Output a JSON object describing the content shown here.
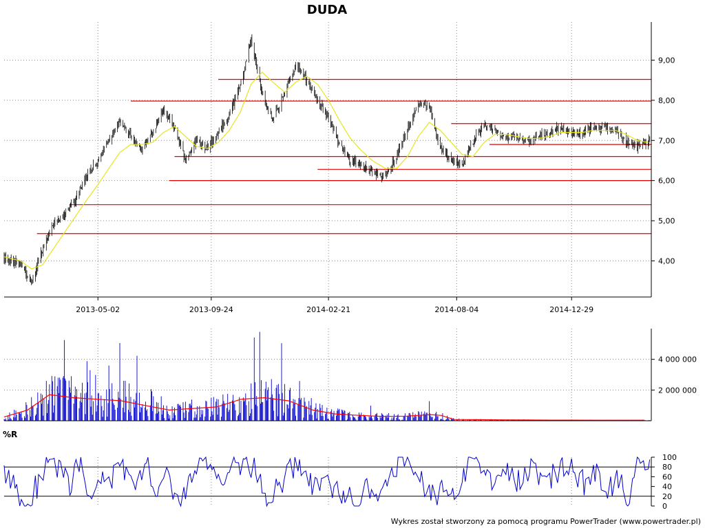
{
  "chart_data": [
    {
      "type": "candlestick",
      "title": "DUDA",
      "x_ticks": [
        "2013-05-02",
        "2013-09-24",
        "2014-02-21",
        "2014-08-04",
        "2014-12-29"
      ],
      "y_ticks": [
        "4,00",
        "5,00",
        "6,00",
        "7,00",
        "8,00",
        "9,00"
      ],
      "ylim": [
        3.1,
        9.95
      ],
      "grid": true,
      "series": [
        {
          "kind": "price",
          "x": [
            "2013-01-02",
            "2013-01-23",
            "2013-02-06",
            "2013-02-20",
            "2013-03-06",
            "2013-03-20",
            "2013-04-03",
            "2013-04-17",
            "2013-05-02",
            "2013-05-16",
            "2013-05-30",
            "2013-06-13",
            "2013-06-27",
            "2013-07-11",
            "2013-07-25",
            "2013-08-08",
            "2013-08-22",
            "2013-09-05",
            "2013-09-19",
            "2013-10-03",
            "2013-10-17",
            "2013-10-31",
            "2013-11-14",
            "2013-11-28",
            "2013-12-12",
            "2013-12-27",
            "2014-01-10",
            "2014-01-24",
            "2014-02-07",
            "2014-02-21",
            "2014-03-07",
            "2014-03-21",
            "2014-04-04",
            "2014-04-18",
            "2014-05-05",
            "2014-05-19",
            "2014-06-02",
            "2014-06-16",
            "2014-06-30",
            "2014-07-14",
            "2014-07-28",
            "2014-08-11",
            "2014-08-25",
            "2014-09-08",
            "2014-09-22",
            "2014-10-06",
            "2014-10-20",
            "2014-11-03",
            "2014-11-17",
            "2014-12-01",
            "2014-12-15",
            "2014-12-29",
            "2015-01-12",
            "2015-01-26",
            "2015-02-09",
            "2015-02-23",
            "2015-03-09",
            "2015-03-23",
            "2015-04-06"
          ],
          "values": [
            4.1,
            3.9,
            3.5,
            4.3,
            4.9,
            5.2,
            5.5,
            6.1,
            6.5,
            7.0,
            7.5,
            7.1,
            6.8,
            7.2,
            7.8,
            7.3,
            6.5,
            7.0,
            6.8,
            7.2,
            7.6,
            8.4,
            9.5,
            8.2,
            7.5,
            8.2,
            8.9,
            8.5,
            8.0,
            7.6,
            6.9,
            6.5,
            6.4,
            6.2,
            6.1,
            6.6,
            7.3,
            7.9,
            7.8,
            6.8,
            6.5,
            6.4,
            7.0,
            7.4,
            7.2,
            7.1,
            7.1,
            7.0,
            7.1,
            7.2,
            7.3,
            7.2,
            7.2,
            7.3,
            7.3,
            7.2,
            7.0,
            6.85,
            7.0
          ]
        },
        {
          "kind": "moving-average",
          "x": [
            "2013-01-02",
            "2013-01-23",
            "2013-02-06",
            "2013-02-20",
            "2013-03-06",
            "2013-03-20",
            "2013-04-03",
            "2013-04-17",
            "2013-05-02",
            "2013-05-16",
            "2013-05-30",
            "2013-06-13",
            "2013-06-27",
            "2013-07-11",
            "2013-07-25",
            "2013-08-08",
            "2013-08-22",
            "2013-09-05",
            "2013-09-19",
            "2013-10-03",
            "2013-10-17",
            "2013-10-31",
            "2013-11-14",
            "2013-11-28",
            "2013-12-12",
            "2013-12-27",
            "2014-01-10",
            "2014-01-24",
            "2014-02-07",
            "2014-02-21",
            "2014-03-07",
            "2014-03-21",
            "2014-04-04",
            "2014-04-18",
            "2014-05-05",
            "2014-05-19",
            "2014-06-02",
            "2014-06-16",
            "2014-06-30",
            "2014-07-14",
            "2014-07-28",
            "2014-08-11",
            "2014-08-25",
            "2014-09-08",
            "2014-09-22",
            "2014-10-06",
            "2014-10-20",
            "2014-11-03",
            "2014-11-17",
            "2014-12-01",
            "2014-12-15",
            "2014-12-29",
            "2015-01-12",
            "2015-01-26",
            "2015-02-09",
            "2015-02-23",
            "2015-03-09",
            "2015-03-23",
            "2015-04-06"
          ],
          "values": [
            4.1,
            4.0,
            3.8,
            3.9,
            4.3,
            4.7,
            5.1,
            5.5,
            5.9,
            6.3,
            6.7,
            6.9,
            6.9,
            6.95,
            7.2,
            7.35,
            7.1,
            6.85,
            6.8,
            6.95,
            7.25,
            7.7,
            8.4,
            8.7,
            8.45,
            8.2,
            8.45,
            8.6,
            8.4,
            8.0,
            7.5,
            7.05,
            6.75,
            6.5,
            6.3,
            6.3,
            6.6,
            7.1,
            7.45,
            7.25,
            6.95,
            6.65,
            6.6,
            6.95,
            7.15,
            7.15,
            7.1,
            7.05,
            7.05,
            7.1,
            7.2,
            7.2,
            7.2,
            7.25,
            7.25,
            7.25,
            7.15,
            7.0,
            6.95
          ]
        }
      ],
      "levels": [
        {
          "y": 8.52,
          "x_start": "2013-10-03"
        },
        {
          "y": 7.98,
          "x_start": "2013-06-13"
        },
        {
          "y": 7.42,
          "x_start": "2014-07-28"
        },
        {
          "y": 6.9,
          "x_start": "2014-09-15"
        },
        {
          "y": 6.6,
          "x_start": "2013-08-08"
        },
        {
          "y": 6.28,
          "x_start": "2014-02-07"
        },
        {
          "y": 6.0,
          "x_start": "2013-08-01"
        },
        {
          "y": 5.4,
          "x_start": "2013-03-27"
        },
        {
          "y": 4.68,
          "x_start": "2013-02-13"
        }
      ],
      "colors": {
        "price": "#006400",
        "moving_average": "#e6e61e",
        "levels": "#e00000"
      }
    },
    {
      "type": "bar",
      "title": "",
      "y_ticks": [
        "2 000 000",
        "4 000 000"
      ],
      "ylim": [
        0,
        6000000
      ],
      "grid": true,
      "series": [
        {
          "kind": "volume",
          "x": [
            "2013-01-02",
            "2013-02-01",
            "2013-03-01",
            "2013-04-01",
            "2013-05-01",
            "2013-06-01",
            "2013-07-01",
            "2013-08-01",
            "2013-09-01",
            "2013-10-01",
            "2013-11-01",
            "2013-12-01",
            "2014-01-01",
            "2014-02-01",
            "2014-03-01",
            "2014-04-01",
            "2014-05-01",
            "2014-06-01",
            "2014-07-01",
            "2014-07-15",
            "2014-08-01",
            "2014-09-01",
            "2014-10-01",
            "2014-11-01",
            "2014-12-01",
            "2015-01-01",
            "2015-02-01",
            "2015-03-01",
            "2015-04-01"
          ],
          "values": [
            250000,
            700000,
            1600000,
            1700000,
            1200000,
            1500000,
            1300000,
            700000,
            850000,
            900000,
            1400000,
            1500000,
            1300000,
            700000,
            450000,
            350000,
            280000,
            300000,
            400000,
            350000,
            80000,
            70000,
            60000,
            50000,
            40000,
            40000,
            35000,
            35000,
            35000
          ]
        },
        {
          "kind": "volume-average",
          "x": [
            "2013-01-02",
            "2013-02-01",
            "2013-03-01",
            "2013-04-01",
            "2013-05-01",
            "2013-06-01",
            "2013-07-01",
            "2013-08-01",
            "2013-09-01",
            "2013-10-01",
            "2013-11-01",
            "2013-12-01",
            "2014-01-01",
            "2014-02-01",
            "2014-03-01",
            "2014-04-01",
            "2014-05-01",
            "2014-06-01",
            "2014-07-01",
            "2014-07-15",
            "2014-08-01",
            "2014-09-01",
            "2014-10-01",
            "2014-11-01",
            "2014-12-01",
            "2015-01-01",
            "2015-02-01",
            "2015-03-01",
            "2015-04-01"
          ],
          "values": [
            250000,
            700000,
            1700000,
            1500000,
            1400000,
            1300000,
            1000000,
            700000,
            800000,
            900000,
            1400000,
            1500000,
            1300000,
            700000,
            450000,
            350000,
            280000,
            300000,
            400000,
            350000,
            80000,
            70000,
            60000,
            50000,
            40000,
            40000,
            35000,
            35000,
            35000
          ]
        }
      ],
      "colors": {
        "volume": "#0000cc",
        "volume_average": "#ff0000"
      }
    },
    {
      "type": "line",
      "title": "%R",
      "y_ticks": [
        "0",
        "20",
        "40",
        "60",
        "80",
        "100"
      ],
      "ylim": [
        0,
        100
      ],
      "reference_lines": [
        20,
        80
      ],
      "series": [
        {
          "kind": "williams-r",
          "x": [
            "2013-01-02",
            "2013-01-16",
            "2013-01-30",
            "2013-02-13",
            "2013-02-27",
            "2013-03-13",
            "2013-03-27",
            "2013-04-10",
            "2013-04-24",
            "2013-05-08",
            "2013-05-22",
            "2013-06-05",
            "2013-06-19",
            "2013-07-03",
            "2013-07-17",
            "2013-07-31",
            "2013-08-14",
            "2013-08-28",
            "2013-09-11",
            "2013-09-25",
            "2013-10-09",
            "2013-10-23",
            "2013-11-06",
            "2013-11-20",
            "2013-12-04",
            "2013-12-18",
            "2014-01-08",
            "2014-01-22",
            "2014-02-05",
            "2014-02-19",
            "2014-03-05",
            "2014-03-19",
            "2014-04-02",
            "2014-04-16",
            "2014-04-30",
            "2014-05-14",
            "2014-05-28",
            "2014-06-11",
            "2014-06-25",
            "2014-07-09",
            "2014-07-23",
            "2014-08-06",
            "2014-08-20",
            "2014-09-03",
            "2014-09-17",
            "2014-10-01",
            "2014-10-15",
            "2014-10-29",
            "2014-11-12",
            "2014-11-26",
            "2014-12-10",
            "2014-12-24",
            "2015-01-14",
            "2015-01-28",
            "2015-02-11",
            "2015-02-25",
            "2015-03-11",
            "2015-03-25",
            "2015-04-08"
          ],
          "values": [
            80,
            30,
            10,
            40,
            95,
            70,
            45,
            90,
            20,
            80,
            60,
            75,
            40,
            85,
            30,
            60,
            15,
            50,
            80,
            90,
            55,
            85,
            95,
            70,
            20,
            40,
            85,
            75,
            30,
            65,
            20,
            35,
            10,
            45,
            25,
            80,
            95,
            70,
            30,
            10,
            40,
            25,
            90,
            75,
            40,
            85,
            50,
            60,
            80,
            40,
            70,
            85,
            45,
            75,
            30,
            60,
            20,
            95,
            80
          ]
        }
      ],
      "colors": {
        "line": "#0000cc"
      }
    }
  ],
  "credit": "Wykres został stworzony za pomocą programu PowerTrader (www.powertrader.pl)"
}
